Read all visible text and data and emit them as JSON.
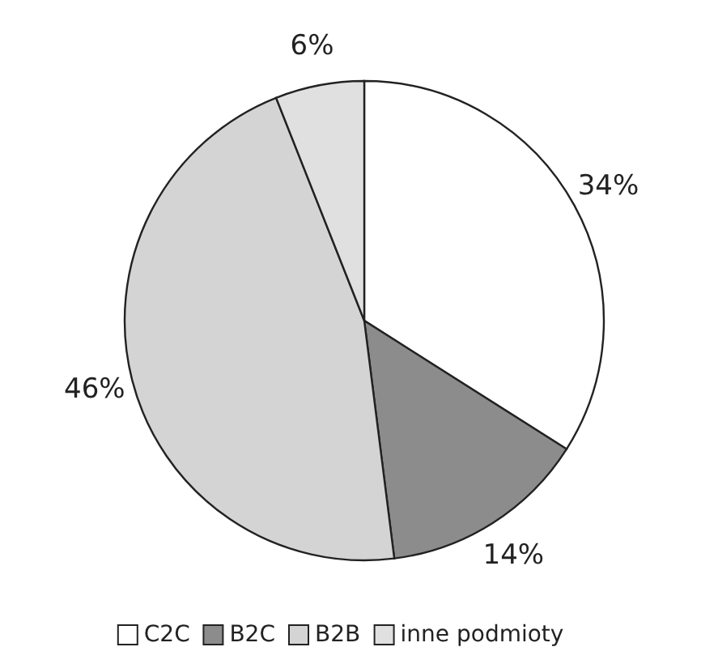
{
  "chart_data": {
    "type": "pie",
    "categories": [
      "C2C",
      "B2C",
      "B2B",
      "inne podmioty"
    ],
    "values": [
      34,
      14,
      46,
      6
    ],
    "colors": [
      "#ffffff",
      "#8c8c8c",
      "#d4d4d4",
      "#e0e0e0"
    ],
    "value_labels": [
      "34%",
      "14%",
      "46%",
      "6%"
    ],
    "legend": "bottom"
  }
}
